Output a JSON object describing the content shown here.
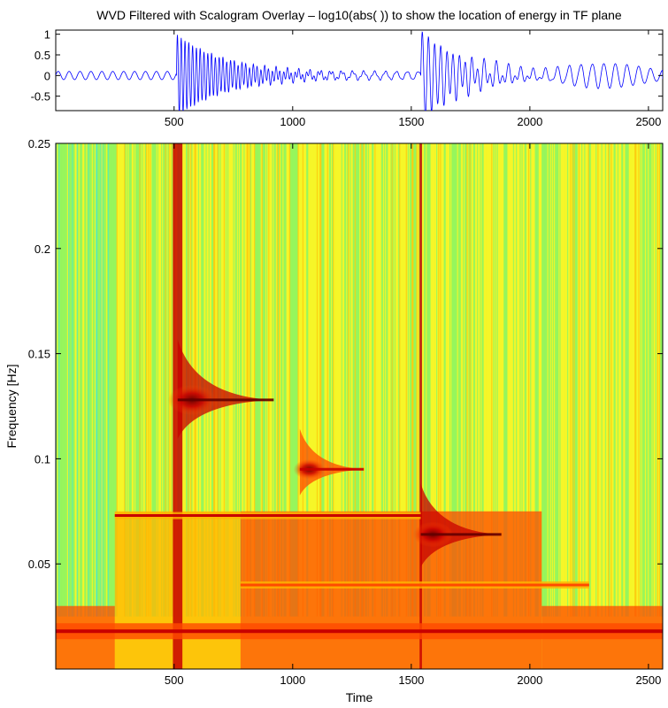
{
  "chart_data": [
    {
      "type": "line",
      "title": "WVD Filtered with Scalogram Overlay – log10(abs( )) to show the location of energy in TF plane",
      "xlim": [
        1,
        2560
      ],
      "ylim": [
        -0.85,
        1.1
      ],
      "x_ticks": [
        "500",
        "1000",
        "1500",
        "2000",
        "2500"
      ],
      "x_tick_values": [
        500,
        1000,
        1500,
        2000,
        2500
      ],
      "y_ticks": [
        "1",
        "0.5",
        "0",
        "-0.5"
      ],
      "y_tick_values": [
        1,
        0.5,
        0,
        -0.5
      ],
      "line_color": "#0000ff",
      "series": [
        {
          "segments": [
            {
              "x_start": 1,
              "x_end": 510,
              "kind": "sine",
              "amplitude": 0.1,
              "period_samples": 46
            },
            {
              "x_start": 510,
              "x_end": 1540,
              "kind": "damped_oscillation",
              "peak_amplitude": 1.0,
              "period_samples": 16,
              "decay_length": 220
            },
            {
              "x_start": 1540,
              "x_end": 2560,
              "kind": "damped_oscillation",
              "peak_amplitude": 1.1,
              "period_samples": 26,
              "decay_length": 180,
              "carrier_amplitude": 0.22,
              "carrier_period_samples": 50
            }
          ]
        }
      ]
    },
    {
      "type": "heatmap",
      "xlabel": "Time",
      "ylabel": "Frequency [Hz]",
      "xlim": [
        1,
        2560
      ],
      "ylim": [
        0,
        0.25
      ],
      "x_ticks": [
        "500",
        "1000",
        "1500",
        "2000",
        "2500"
      ],
      "x_tick_values": [
        500,
        1000,
        1500,
        2000,
        2500
      ],
      "y_ticks": [
        "0.05",
        "0.1",
        "0.15",
        "0.2",
        "0.25"
      ],
      "y_tick_values": [
        0.05,
        0.1,
        0.15,
        0.2,
        0.25
      ],
      "colormap": [
        "#00e8ff",
        "#5cf57c",
        "#f5f528",
        "#ffb400",
        "#ff4a00",
        "#c80000",
        "#640000"
      ],
      "background_level": 0.28,
      "features": [
        {
          "kind": "vertical_band",
          "x": 515,
          "width": 40,
          "f_min": 0.0,
          "f_max": 0.25,
          "level": 0.75
        },
        {
          "kind": "vertical_line",
          "x": 1540,
          "width": 10,
          "f_min": 0.0,
          "f_max": 0.25,
          "level": 0.8
        },
        {
          "kind": "decay_tail",
          "x_start": 515,
          "x_end": 920,
          "f": 0.128,
          "level": 0.95
        },
        {
          "kind": "decay_tail",
          "x_start": 1030,
          "x_end": 1300,
          "f": 0.095,
          "level": 0.75
        },
        {
          "kind": "decay_tail",
          "x_start": 1540,
          "x_end": 1880,
          "f": 0.064,
          "level": 1.0
        },
        {
          "kind": "horizontal_band",
          "x_start": 250,
          "x_end": 1540,
          "f": 0.073,
          "level": 0.75
        },
        {
          "kind": "horizontal_band",
          "x_start": 780,
          "x_end": 2250,
          "f": 0.04,
          "level": 0.7
        },
        {
          "kind": "horizontal_band",
          "x_start": 1,
          "x_end": 2560,
          "f": 0.018,
          "level": 0.9
        },
        {
          "kind": "region",
          "x_start": 250,
          "x_end": 780,
          "f_min": 0.0,
          "f_max": 0.075,
          "level": 0.55
        },
        {
          "kind": "region",
          "x_start": 780,
          "x_end": 2050,
          "f_min": 0.0,
          "f_max": 0.075,
          "level": 0.6
        },
        {
          "kind": "region",
          "x_start": 1,
          "x_end": 250,
          "f_min": 0.0,
          "f_max": 0.03,
          "level": 0.65
        },
        {
          "kind": "region",
          "x_start": 2050,
          "x_end": 2560,
          "f_min": 0.0,
          "f_max": 0.03,
          "level": 0.65
        }
      ]
    }
  ]
}
